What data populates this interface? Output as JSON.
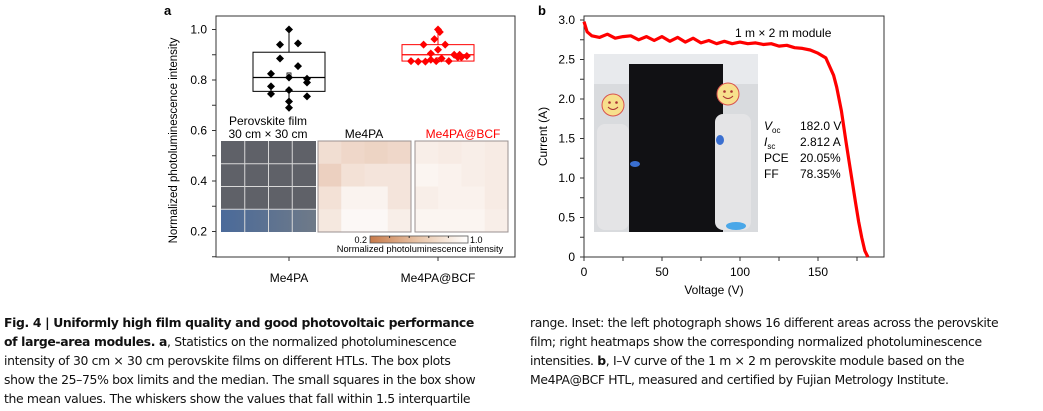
{
  "figure": {
    "number": "Fig. 4",
    "title": "Uniformly high film quality and good photovoltaic performance of large-area modules.",
    "caption_lines_left": [
      {
        "bold": "Fig. 4 | Uniformly high film quality and good photovoltaic performance",
        "text": ""
      },
      {
        "bold": "of large-area modules. a",
        "text": ", Statistics on the normalized photoluminescence"
      },
      {
        "bold": "",
        "text": "intensity of 30 cm × 30 cm perovskite films on different HTLs. The box plots"
      },
      {
        "bold": "",
        "text": "show the 25–75% box limits and the median. The small squares in the box show"
      },
      {
        "bold": "",
        "text": "the mean values. The whiskers show the values that fall within 1.5 interquartile"
      }
    ],
    "caption_lines_right": [
      {
        "bold": "",
        "text": "range. Inset: the left photograph shows 16 different areas across the perovskite"
      },
      {
        "bold": "",
        "text": "film; right heatmaps show the corresponding normalized photoluminescence"
      },
      {
        "bold": "",
        "text": "intensities. ",
        "bold2": "b",
        "text2": ", I–V curve of the 1 m × 2 m perovskite module based on the"
      },
      {
        "bold": "",
        "text": "Me4PA@BCF HTL, measured and certified by Fujian Metrology Institute."
      }
    ]
  },
  "chart_data": [
    {
      "panel": "a",
      "type": "box",
      "title": "",
      "ylabel": "Normalized photoluminescence intensity",
      "xlabel": "",
      "categories": [
        "Me4PA",
        "Me4PA@BCF"
      ],
      "ylim": [
        0.1,
        1.05
      ],
      "yticks": [
        0.2,
        0.4,
        0.6,
        0.8,
        1.0
      ],
      "ytick_labels": [
        "0.2",
        "0.4",
        "0.6",
        "0.8",
        "1.0"
      ],
      "series": [
        {
          "name": "Me4PA",
          "color": "#000000",
          "q1": 0.755,
          "median": 0.81,
          "q3": 0.91,
          "mean": 0.82,
          "whisker_low": 0.69,
          "whisker_high": 1.0,
          "points": [
            {
              "x": -0.5,
              "y": 0.825
            },
            {
              "x": -0.5,
              "y": 0.775
            },
            {
              "x": -0.5,
              "y": 0.745
            },
            {
              "x": -0.25,
              "y": 0.94
            },
            {
              "x": -0.25,
              "y": 0.885
            },
            {
              "x": 0.0,
              "y": 1.0
            },
            {
              "x": 0.0,
              "y": 0.81
            },
            {
              "x": 0.0,
              "y": 0.76
            },
            {
              "x": 0.0,
              "y": 0.715
            },
            {
              "x": 0.0,
              "y": 0.69
            },
            {
              "x": 0.25,
              "y": 0.945
            },
            {
              "x": 0.25,
              "y": 0.855
            },
            {
              "x": 0.5,
              "y": 0.805
            },
            {
              "x": 0.5,
              "y": 0.79
            },
            {
              "x": 0.5,
              "y": 0.735
            }
          ]
        },
        {
          "name": "Me4PA@BCF",
          "color": "#ff0000",
          "q1": 0.875,
          "median": 0.9,
          "q3": 0.94,
          "mean": 0.88,
          "whisker_low": 0.87,
          "whisker_high": 1.0,
          "points": [
            {
              "x": -0.75,
              "y": 0.875
            },
            {
              "x": -0.55,
              "y": 0.873
            },
            {
              "x": -0.35,
              "y": 0.873
            },
            {
              "x": -0.4,
              "y": 0.94
            },
            {
              "x": -0.2,
              "y": 0.88
            },
            {
              "x": -0.2,
              "y": 0.905
            },
            {
              "x": -0.1,
              "y": 0.962
            },
            {
              "x": 0.0,
              "y": 1.0
            },
            {
              "x": 0.05,
              "y": 0.99
            },
            {
              "x": 0.0,
              "y": 0.92
            },
            {
              "x": -0.05,
              "y": 0.875
            },
            {
              "x": 0.1,
              "y": 0.885
            },
            {
              "x": 0.2,
              "y": 0.94
            },
            {
              "x": 0.3,
              "y": 0.875
            },
            {
              "x": 0.45,
              "y": 0.9
            },
            {
              "x": 0.55,
              "y": 0.89
            },
            {
              "x": 0.65,
              "y": 0.89
            },
            {
              "x": 0.8,
              "y": 0.895
            },
            {
              "x": 0.6,
              "y": 0.9
            }
          ]
        }
      ],
      "inset": {
        "photo_label_line1": "Perovskite film",
        "photo_label_line2": "30 cm × 30 cm",
        "heatmap_labels": [
          "Me4PA",
          "Me4PA@BCF"
        ],
        "heatmap_label_colors": [
          "#000000",
          "#ff0000"
        ],
        "grid": "4x4",
        "heatmap_Me4PA": [
          [
            0.8,
            0.76,
            0.74,
            0.76
          ],
          [
            0.72,
            0.82,
            0.84,
            0.84
          ],
          [
            0.82,
            0.93,
            0.93,
            0.84
          ],
          [
            0.86,
            0.96,
            0.96,
            0.9
          ]
        ],
        "heatmap_Me4PA_BCF": [
          [
            0.9,
            0.88,
            0.9,
            0.88
          ],
          [
            0.94,
            0.92,
            0.9,
            0.88
          ],
          [
            0.9,
            0.92,
            0.92,
            0.88
          ],
          [
            0.94,
            0.94,
            0.94,
            0.9
          ]
        ],
        "colorbar": {
          "min_label": "0.2",
          "max_label": "1.0",
          "range": [
            0.2,
            1.0
          ],
          "label": "Normalized photoluminescence intensity",
          "color_low": "#c87a4a",
          "color_high": "#ffffff"
        }
      },
      "legend": "none"
    },
    {
      "panel": "b",
      "type": "line",
      "title": "",
      "xlabel": "Voltage (V)",
      "ylabel": "Current (A)",
      "xlim": [
        0,
        192
      ],
      "ylim": [
        0,
        3.0
      ],
      "xticks": [
        0,
        50,
        100,
        150
      ],
      "xtick_labels": [
        "0",
        "50",
        "100",
        "150"
      ],
      "yticks": [
        0,
        0.5,
        1.0,
        1.5,
        2.0,
        2.5,
        3.0
      ],
      "ytick_labels": [
        "0",
        "0.5",
        "1.0",
        "1.5",
        "2.0",
        "2.5",
        "3.0"
      ],
      "series": [
        {
          "name": "1 m × 2 m module",
          "color": "#ff0000",
          "x": [
            0,
            2,
            5,
            10,
            15,
            20,
            25,
            30,
            35,
            40,
            45,
            50,
            55,
            60,
            65,
            70,
            75,
            80,
            85,
            90,
            95,
            100,
            105,
            110,
            115,
            120,
            125,
            130,
            135,
            140,
            145,
            150,
            155,
            160,
            162,
            165,
            168,
            170,
            172,
            174,
            176,
            178,
            180,
            182
          ],
          "y": [
            2.98,
            2.85,
            2.8,
            2.78,
            2.82,
            2.77,
            2.79,
            2.8,
            2.75,
            2.79,
            2.74,
            2.79,
            2.73,
            2.78,
            2.72,
            2.77,
            2.71,
            2.74,
            2.7,
            2.73,
            2.7,
            2.72,
            2.7,
            2.71,
            2.69,
            2.7,
            2.67,
            2.68,
            2.65,
            2.64,
            2.62,
            2.58,
            2.52,
            2.3,
            2.15,
            1.85,
            1.45,
            1.2,
            0.95,
            0.7,
            0.45,
            0.25,
            0.08,
            0.0
          ]
        }
      ],
      "annotation": "1 m × 2 m module",
      "metrics": [
        {
          "label": "V",
          "sub": "oc",
          "value": "182.0 V"
        },
        {
          "label": "I",
          "sub": "sc",
          "value": "2.812 A"
        },
        {
          "label": "PCE",
          "sub": "",
          "value": "20.05%"
        },
        {
          "label": "FF",
          "sub": "",
          "value": "78.35%"
        }
      ],
      "legend": "none"
    }
  ],
  "panel_labels": [
    "a",
    "b"
  ]
}
